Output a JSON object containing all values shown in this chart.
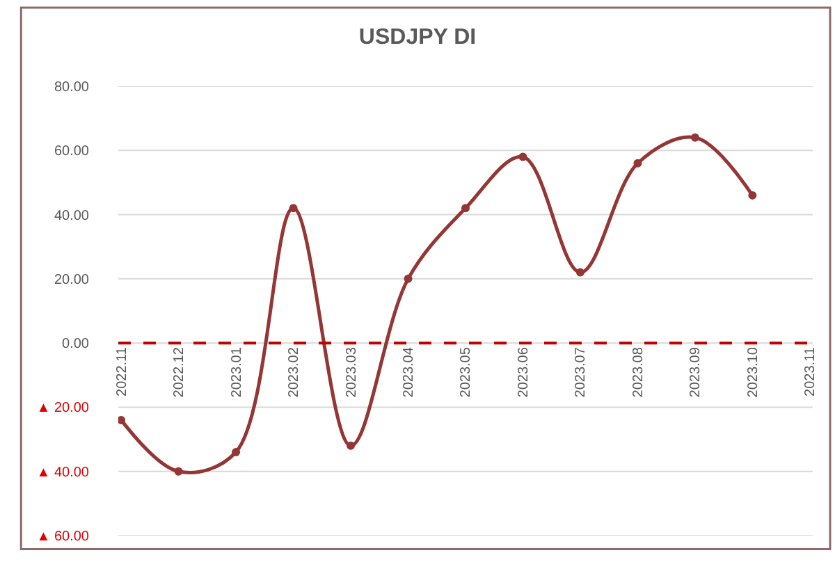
{
  "chart_data": {
    "type": "line",
    "title": "USDJPY DI",
    "categories": [
      "2022.11",
      "2022.12",
      "2023.01",
      "2023.02",
      "2023.03",
      "2023.04",
      "2023.05",
      "2023.06",
      "2023.07",
      "2023.08",
      "2023.09",
      "2023.10",
      "2023.11"
    ],
    "series": [
      {
        "color": "#943634",
        "values": [
          -24,
          -40,
          -34,
          42,
          -32,
          20,
          42,
          58,
          22,
          56,
          64,
          46,
          null
        ]
      }
    ],
    "ylim": [
      -60,
      80
    ],
    "yticks": [
      {
        "value": -60,
        "label": "▲ 60.00"
      },
      {
        "value": -40,
        "label": "▲ 40.00"
      },
      {
        "value": -20,
        "label": "▲ 20.00"
      },
      {
        "value": 0,
        "label": "0.00"
      },
      {
        "value": 20,
        "label": "20.00"
      },
      {
        "value": 40,
        "label": "40.00"
      },
      {
        "value": 60,
        "label": "60.00"
      },
      {
        "value": 80,
        "label": "80.00"
      }
    ],
    "ref_lines": [
      {
        "axis": "y",
        "value": 0,
        "label": null,
        "color": "#c00000",
        "line_style": "dashed"
      }
    ],
    "grid": "y",
    "marker": "circle",
    "line_style": "solid"
  }
}
